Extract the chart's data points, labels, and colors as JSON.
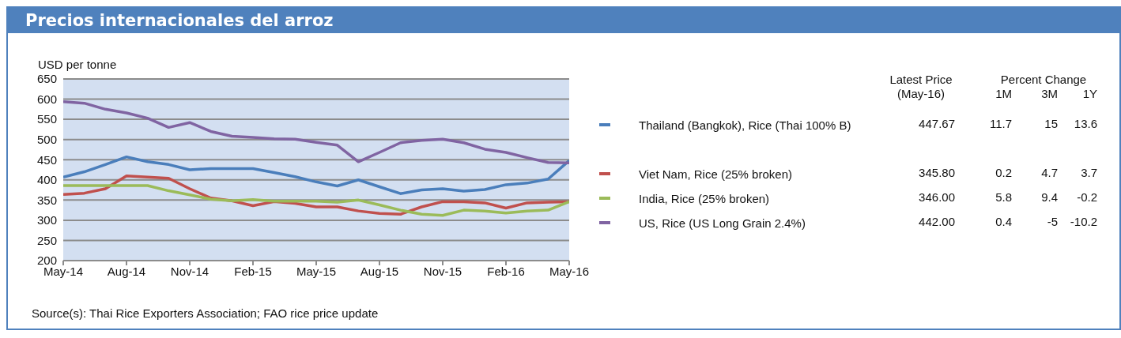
{
  "chart_data": {
    "type": "line",
    "title": "Precios internacionales del arroz",
    "ylabel": "USD per tonne",
    "categories": [
      "May-14",
      null,
      null,
      "Aug-14",
      null,
      null,
      "Nov-14",
      null,
      null,
      "Feb-15",
      null,
      null,
      "May-15",
      null,
      null,
      "Aug-15",
      null,
      null,
      "Nov-15",
      null,
      null,
      "Feb-16",
      null,
      null,
      "May-16"
    ],
    "series": [
      {
        "name": "Thailand (Bangkok), Rice (Thai 100% B)",
        "color": "#4a7ebb",
        "values": [
          407,
          420,
          438,
          457,
          445,
          438,
          425,
          428,
          428,
          428,
          418,
          408,
          395,
          385,
          400,
          383,
          366,
          375,
          378,
          372,
          376,
          388,
          392,
          402,
          447.67
        ]
      },
      {
        "name": "Viet Nam, Rice (25% broken)",
        "color": "#c0504d",
        "values": [
          364,
          367,
          378,
          410,
          407,
          404,
          378,
          355,
          348,
          336,
          346,
          342,
          333,
          333,
          323,
          317,
          315,
          333,
          346,
          346,
          343,
          330,
          343,
          345,
          345.8
        ]
      },
      {
        "name": "India, Rice (25% broken)",
        "color": "#9bbb59",
        "values": [
          386,
          386,
          386,
          386,
          386,
          373,
          363,
          352,
          348,
          351,
          347,
          347,
          347,
          345,
          350,
          338,
          325,
          315,
          312,
          325,
          323,
          318,
          323,
          325,
          346
        ]
      },
      {
        "name": "US, Rice (US Long Grain 2.4%)",
        "color": "#8064a2",
        "values": [
          594,
          590,
          575,
          566,
          553,
          530,
          542,
          520,
          508,
          505,
          502,
          501,
          493,
          486,
          445,
          468,
          492,
          498,
          501,
          492,
          476,
          468,
          455,
          443,
          442
        ]
      }
    ],
    "ylim": [
      200,
      650
    ],
    "yticks": [
      200,
      250,
      300,
      350,
      400,
      450,
      500,
      550,
      600,
      650
    ],
    "grid": "y",
    "legend": "right",
    "annotations": [
      "Source(s): Thai Rice Exporters Association; FAO rice price update",
      "Latest Price",
      "(May-16)",
      "Percent Change",
      "1M",
      "3M",
      "1Y",
      "447.67",
      "11.7",
      "15",
      "13.6",
      "345.80",
      "0.2",
      "4.7",
      "3.7",
      "346.00",
      "5.8",
      "9.4",
      "-0.2",
      "442.00",
      "0.4",
      "-5",
      "-10.2"
    ]
  }
}
